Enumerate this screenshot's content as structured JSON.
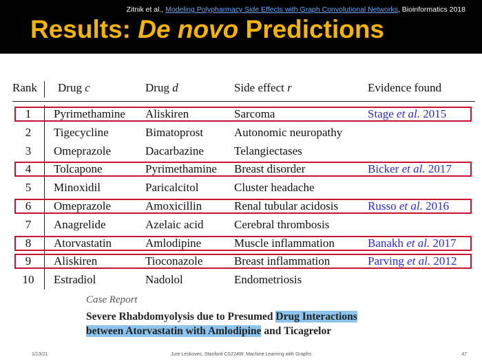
{
  "header": {
    "citation_author": "Zitnik et al., ",
    "citation_link": "Modeling Polypharmacy Side Effects with Graph Convolutional Networks",
    "citation_venue": ", Bioinformatics 2018",
    "title_prefix": "Results: ",
    "title_emphasis": "De novo",
    "title_suffix": " Predictions"
  },
  "table": {
    "headers": {
      "rank": "Rank",
      "drug_c": "Drug c",
      "drug_d": "Drug d",
      "side_effect": "Side effect r",
      "evidence": "Evidence found"
    },
    "rows": [
      {
        "rank": "1",
        "drug_c": "Pyrimethamine",
        "drug_d": "Aliskiren",
        "side_effect": "Sarcoma",
        "evidence_author": "Stage ",
        "evidence_etal": "et al.",
        "evidence_year": " 2015",
        "highlighted": true
      },
      {
        "rank": "2",
        "drug_c": "Tigecycline",
        "drug_d": "Bimatoprost",
        "side_effect": "Autonomic neuropathy",
        "evidence_author": "",
        "evidence_etal": "",
        "evidence_year": "",
        "highlighted": false
      },
      {
        "rank": "3",
        "drug_c": "Omeprazole",
        "drug_d": "Dacarbazine",
        "side_effect": "Telangiectases",
        "evidence_author": "",
        "evidence_etal": "",
        "evidence_year": "",
        "highlighted": false
      },
      {
        "rank": "4",
        "drug_c": "Tolcapone",
        "drug_d": "Pyrimethamine",
        "side_effect": "Breast disorder",
        "evidence_author": "Bicker ",
        "evidence_etal": "et al.",
        "evidence_year": " 2017",
        "highlighted": true
      },
      {
        "rank": "5",
        "drug_c": "Minoxidil",
        "drug_d": "Paricalcitol",
        "side_effect": "Cluster headache",
        "evidence_author": "",
        "evidence_etal": "",
        "evidence_year": "",
        "highlighted": false
      },
      {
        "rank": "6",
        "drug_c": "Omeprazole",
        "drug_d": "Amoxicillin",
        "side_effect": "Renal tubular acidosis",
        "evidence_author": "Russo ",
        "evidence_etal": "et al.",
        "evidence_year": " 2016",
        "highlighted": true
      },
      {
        "rank": "7",
        "drug_c": "Anagrelide",
        "drug_d": "Azelaic acid",
        "side_effect": "Cerebral thrombosis",
        "evidence_author": "",
        "evidence_etal": "",
        "evidence_year": "",
        "highlighted": false
      },
      {
        "rank": "8",
        "drug_c": "Atorvastatin",
        "drug_d": "Amlodipine",
        "side_effect": "Muscle inflammation",
        "evidence_author": "Banakh ",
        "evidence_etal": "et al.",
        "evidence_year": " 2017",
        "highlighted": true
      },
      {
        "rank": "9",
        "drug_c": "Aliskiren",
        "drug_d": "Tioconazole",
        "side_effect": "Breast inflammation",
        "evidence_author": "Parving ",
        "evidence_etal": "et al.",
        "evidence_year": " 2012",
        "highlighted": true
      },
      {
        "rank": "10",
        "drug_c": "Estradiol",
        "drug_d": "Nadolol",
        "side_effect": "Endometriosis",
        "evidence_author": "",
        "evidence_etal": "",
        "evidence_year": "",
        "highlighted": false
      }
    ]
  },
  "case_report": {
    "label": "Case Report",
    "line1_plain": "Severe Rhabdomyolysis due to Presumed ",
    "line1_highlight": "Drug Interactions",
    "line2_highlight": "between Atorvastatin with Amlodipine",
    "line2_plain": " and Ticagrelor"
  },
  "footer": {
    "date": "1/13/21",
    "center": "Jure Leskovec, Stanford CS224W: Machine Learning with Graphs",
    "page": "47"
  },
  "colors": {
    "title": "#f5b400",
    "header_bg": "#000000",
    "highlight_box": "#c8102e",
    "link": "#2a2ad0",
    "case_highlight": "#8cc4ee"
  }
}
